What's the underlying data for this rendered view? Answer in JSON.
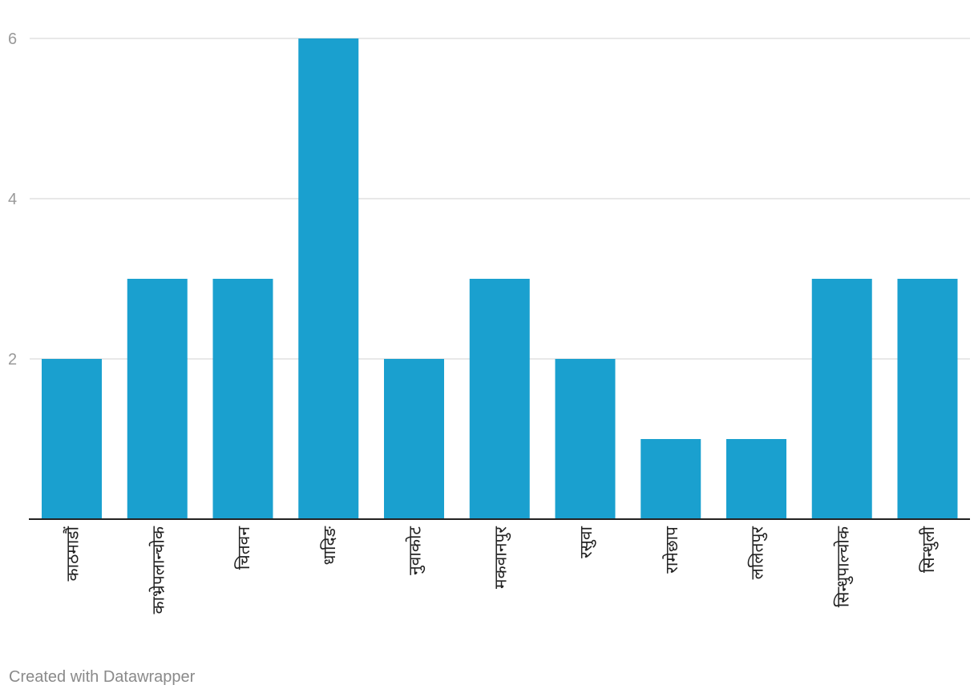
{
  "chart_data": {
    "type": "bar",
    "categories": [
      "काठमाडौं",
      "काभ्रेपलान्चोक",
      "चितवन",
      "धादिङ",
      "नुवाकोट",
      "मकवानपुर",
      "रसुवा",
      "रामेछाप",
      "ललितपुर",
      "सिन्धुपाल्चोक",
      "सिन्धुली"
    ],
    "values": [
      2,
      3,
      3,
      6,
      2,
      3,
      2,
      1,
      1,
      3,
      3
    ],
    "ylim": [
      0,
      6
    ],
    "yticks": [
      2,
      4,
      6
    ],
    "grid": true,
    "bar_color": "#1aa0cf",
    "xlabel": "",
    "ylabel": ""
  },
  "footer": {
    "credit": "Created with Datawrapper"
  }
}
